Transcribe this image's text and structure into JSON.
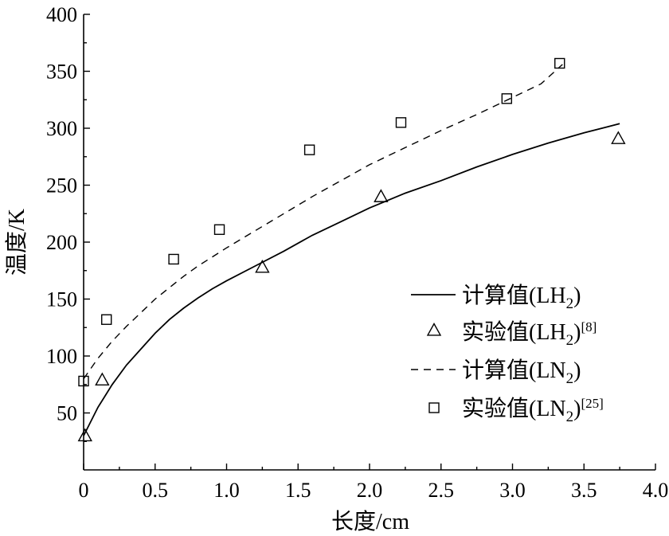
{
  "chart_data": {
    "type": "line",
    "xlabel": "长度/cm",
    "ylabel": "温度/K",
    "xlim": [
      0,
      4.0
    ],
    "ylim": [
      0,
      400
    ],
    "x_ticks": [
      {
        "value": 0,
        "label": "0"
      },
      {
        "value": 0.5,
        "label": "0.5"
      },
      {
        "value": 1.0,
        "label": "1.0"
      },
      {
        "value": 1.5,
        "label": "1.5"
      },
      {
        "value": 2.0,
        "label": "2.0"
      },
      {
        "value": 2.5,
        "label": "2.5"
      },
      {
        "value": 3.0,
        "label": "3.0"
      },
      {
        "value": 3.5,
        "label": "3.5"
      },
      {
        "value": 4.0,
        "label": "4.0"
      }
    ],
    "y_ticks": [
      {
        "value": 50,
        "label": "50"
      },
      {
        "value": 100,
        "label": "100"
      },
      {
        "value": 150,
        "label": "150"
      },
      {
        "value": 200,
        "label": "200"
      },
      {
        "value": 250,
        "label": "250"
      },
      {
        "value": 300,
        "label": "300"
      },
      {
        "value": 350,
        "label": "350"
      },
      {
        "value": 400,
        "label": "400"
      }
    ],
    "grid": false,
    "legend_position": "right",
    "series": [
      {
        "name": "计算值(LH2)",
        "label_main": "计算值(LH",
        "label_sub": "2",
        "label_tail": ")",
        "label_sup": "",
        "style": "solid",
        "points": [
          [
            0,
            30
          ],
          [
            0.1,
            55
          ],
          [
            0.2,
            75
          ],
          [
            0.3,
            92
          ],
          [
            0.4,
            106
          ],
          [
            0.5,
            120
          ],
          [
            0.6,
            132
          ],
          [
            0.7,
            142
          ],
          [
            0.8,
            151
          ],
          [
            0.9,
            159
          ],
          [
            1.0,
            166
          ],
          [
            1.2,
            179
          ],
          [
            1.4,
            192
          ],
          [
            1.6,
            206
          ],
          [
            1.8,
            218
          ],
          [
            2.0,
            230
          ],
          [
            2.25,
            243
          ],
          [
            2.5,
            254
          ],
          [
            2.75,
            266
          ],
          [
            3.0,
            277
          ],
          [
            3.25,
            287
          ],
          [
            3.5,
            296
          ],
          [
            3.75,
            304
          ]
        ]
      },
      {
        "name": "实验值(LH2)[8]",
        "label_main": "实验值(LH",
        "label_sub": "2",
        "label_tail": ")",
        "label_sup": "[8]",
        "style": "triangle",
        "points": [
          [
            0.01,
            29
          ],
          [
            0.13,
            78
          ],
          [
            1.25,
            177
          ],
          [
            2.08,
            239
          ],
          [
            3.74,
            290
          ]
        ]
      },
      {
        "name": "计算值(LN2)",
        "label_main": "计算值(LN",
        "label_sub": "2",
        "label_tail": ")",
        "label_sup": "",
        "style": "dashed",
        "points": [
          [
            0,
            80
          ],
          [
            0.1,
            98
          ],
          [
            0.2,
            113
          ],
          [
            0.3,
            126
          ],
          [
            0.4,
            138
          ],
          [
            0.5,
            150
          ],
          [
            0.6,
            160
          ],
          [
            0.7,
            170
          ],
          [
            0.8,
            179
          ],
          [
            0.9,
            187
          ],
          [
            1.0,
            195
          ],
          [
            1.2,
            210
          ],
          [
            1.4,
            225
          ],
          [
            1.6,
            240
          ],
          [
            1.8,
            254
          ],
          [
            2.0,
            268
          ],
          [
            2.25,
            283
          ],
          [
            2.5,
            298
          ],
          [
            2.75,
            312
          ],
          [
            3.0,
            327
          ],
          [
            3.2,
            339
          ],
          [
            3.35,
            356
          ]
        ]
      },
      {
        "name": "实验值(LN2)[25]",
        "label_main": "实验值(LN",
        "label_sub": "2",
        "label_tail": ")",
        "label_sup": "[25]",
        "style": "square",
        "points": [
          [
            0.0,
            78
          ],
          [
            0.16,
            132
          ],
          [
            0.63,
            185
          ],
          [
            0.95,
            211
          ],
          [
            1.58,
            281
          ],
          [
            2.22,
            305
          ],
          [
            2.96,
            326
          ],
          [
            3.33,
            357
          ]
        ]
      }
    ]
  }
}
